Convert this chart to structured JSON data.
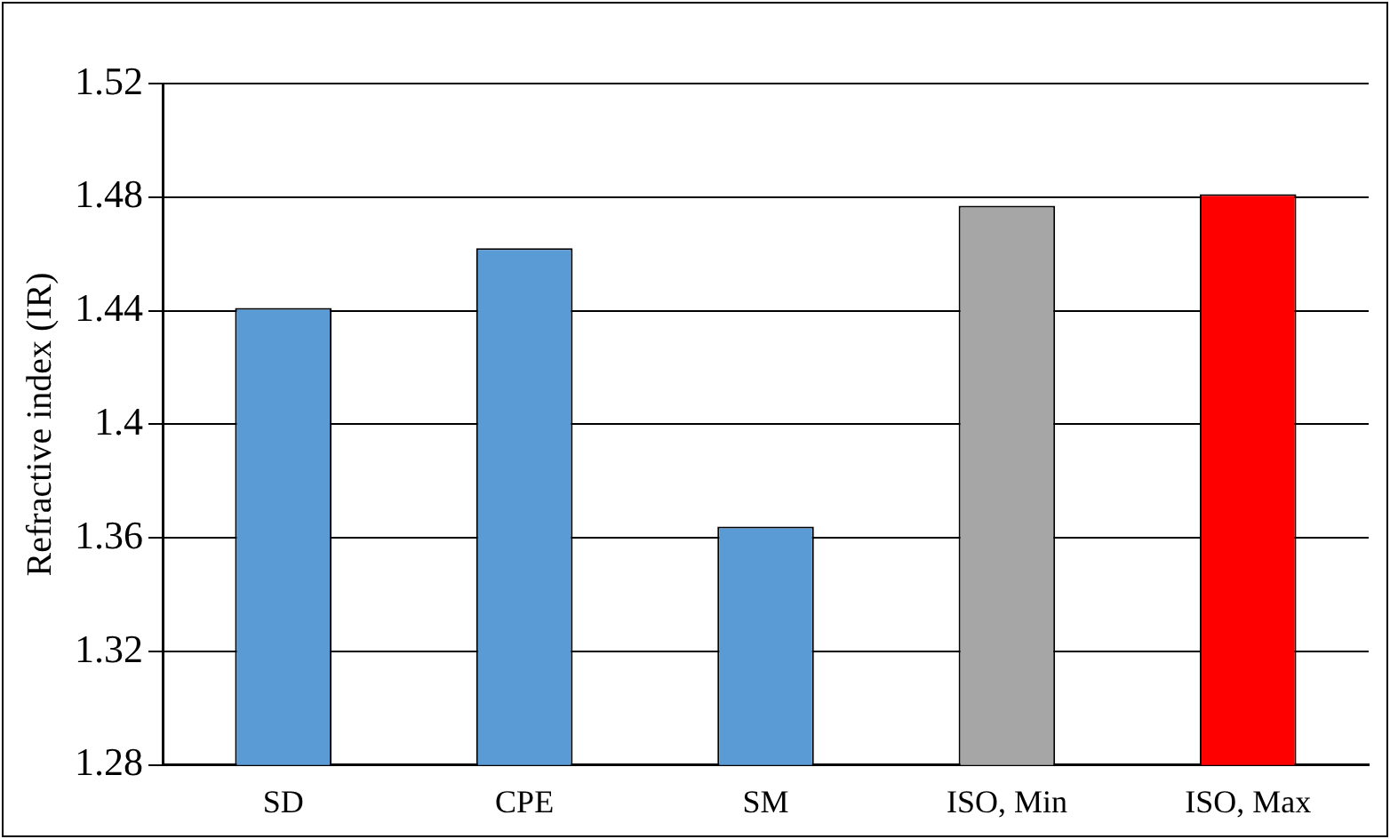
{
  "chart_data": {
    "type": "bar",
    "ylabel": "Refractive index (IR)",
    "categories": [
      "SD",
      "CPE",
      "SM",
      "ISO, Min",
      "ISO, Max"
    ],
    "values": [
      1.441,
      1.462,
      1.364,
      1.477,
      1.481
    ],
    "colors": [
      "#5b9bd5",
      "#5b9bd5",
      "#5b9bd5",
      "#a6a6a6",
      "#ff0000"
    ],
    "ylim": [
      1.28,
      1.52
    ],
    "yticks": [
      1.28,
      1.32,
      1.36,
      {
        "value": 1.4,
        "label": "1.4"
      },
      1.44,
      1.48,
      1.52
    ],
    "grid": "y",
    "legend": false
  }
}
